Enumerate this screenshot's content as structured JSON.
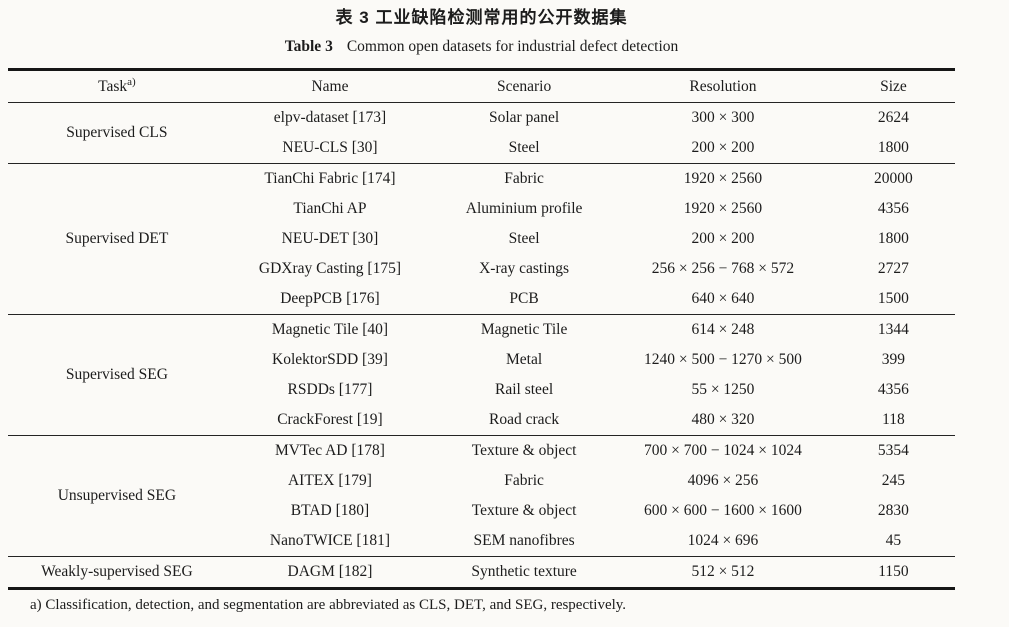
{
  "titles": {
    "cn": "表 3  工业缺陷检测常用的公开数据集",
    "en_label": "Table 3",
    "en_text": "Common open datasets for industrial defect detection"
  },
  "header": {
    "task": "Task",
    "task_sup": "a)",
    "name": "Name",
    "scenario": "Scenario",
    "resolution": "Resolution",
    "size": "Size"
  },
  "sections": [
    {
      "task": "Supervised CLS",
      "rows": [
        {
          "name": "elpv-dataset [173]",
          "scenario": "Solar panel",
          "resolution": "300 × 300",
          "size": "2624"
        },
        {
          "name": "NEU-CLS [30]",
          "scenario": "Steel",
          "resolution": "200 × 200",
          "size": "1800"
        }
      ]
    },
    {
      "task": "Supervised DET",
      "rows": [
        {
          "name": "TianChi Fabric [174]",
          "scenario": "Fabric",
          "resolution": "1920 × 2560",
          "size": "20000"
        },
        {
          "name": "TianChi AP",
          "scenario": "Aluminium profile",
          "resolution": "1920 × 2560",
          "size": "4356"
        },
        {
          "name": "NEU-DET [30]",
          "scenario": "Steel",
          "resolution": "200 × 200",
          "size": "1800"
        },
        {
          "name": "GDXray Casting [175]",
          "scenario": "X-ray castings",
          "resolution": "256 × 256 − 768 × 572",
          "size": "2727"
        },
        {
          "name": "DeepPCB [176]",
          "scenario": "PCB",
          "resolution": "640 × 640",
          "size": "1500"
        }
      ]
    },
    {
      "task": "Supervised SEG",
      "rows": [
        {
          "name": "Magnetic Tile [40]",
          "scenario": "Magnetic Tile",
          "resolution": "614 × 248",
          "size": "1344"
        },
        {
          "name": "KolektorSDD [39]",
          "scenario": "Metal",
          "resolution": "1240 × 500 − 1270 × 500",
          "size": "399"
        },
        {
          "name": "RSDDs [177]",
          "scenario": "Rail steel",
          "resolution": "55 × 1250",
          "size": "4356"
        },
        {
          "name": "CrackForest [19]",
          "scenario": "Road crack",
          "resolution": "480 × 320",
          "size": "118"
        }
      ]
    },
    {
      "task": "Unsupervised SEG",
      "rows": [
        {
          "name": "MVTec AD [178]",
          "scenario": "Texture & object",
          "resolution": "700 × 700 − 1024 × 1024",
          "size": "5354"
        },
        {
          "name": "AITEX [179]",
          "scenario": "Fabric",
          "resolution": "4096 × 256",
          "size": "245"
        },
        {
          "name": "BTAD [180]",
          "scenario": "Texture & object",
          "resolution": "600 × 600 − 1600 × 1600",
          "size": "2830"
        },
        {
          "name": "NanoTWICE [181]",
          "scenario": "SEM nanofibres",
          "resolution": "1024 × 696",
          "size": "45"
        }
      ]
    },
    {
      "task": "Weakly-supervised SEG",
      "rows": [
        {
          "name": "DAGM [182]",
          "scenario": "Synthetic texture",
          "resolution": "512 × 512",
          "size": "1150"
        }
      ]
    }
  ],
  "footnote": "a) Classification, detection, and segmentation are abbreviated as CLS, DET, and SEG, respectively."
}
